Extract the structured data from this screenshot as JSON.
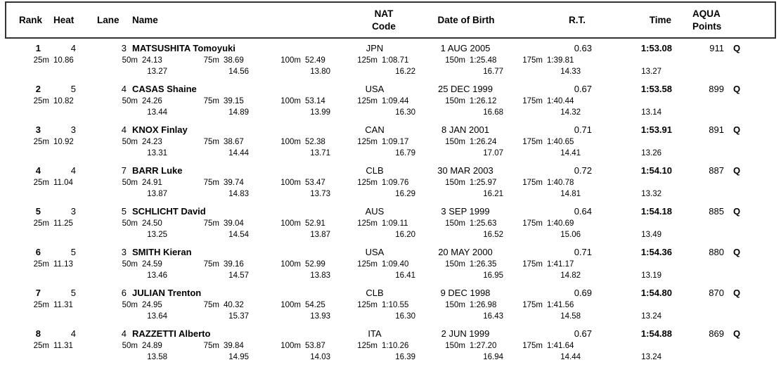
{
  "header": {
    "rank": "Rank",
    "heat": "Heat",
    "lane": "Lane",
    "name": "Name",
    "nat_line1": "NAT",
    "nat_line2": "Code",
    "dob": "Date of Birth",
    "rt": "R.T.",
    "time": "Time",
    "points_line1": "AQUA",
    "points_line2": "Points"
  },
  "split_labels": {
    "s25": "25m",
    "s50": "50m",
    "s75": "75m",
    "s100": "100m",
    "s125": "125m",
    "s150": "150m",
    "s175": "175m"
  },
  "rows": [
    {
      "rank": "1",
      "heat": "4",
      "lane": "3",
      "name": "MATSUSHITA Tomoyuki",
      "nat": "JPN",
      "dob": "1 AUG 2005",
      "rt": "0.63",
      "time": "1:53.08",
      "points": "911",
      "q": "Q",
      "splits": {
        "s25": "10.86",
        "s50": "24.13",
        "s75": "38.69",
        "s100": "52.49",
        "s125": "1:08.71",
        "s150": "1:25.48",
        "s175": "1:39.81"
      },
      "diffs": {
        "d50": "13.27",
        "d75": "14.56",
        "d100": "13.80",
        "d125": "16.22",
        "d150": "16.77",
        "d175": "14.33",
        "d200": "13.27"
      }
    },
    {
      "rank": "2",
      "heat": "5",
      "lane": "4",
      "name": "CASAS Shaine",
      "nat": "USA",
      "dob": "25 DEC 1999",
      "rt": "0.67",
      "time": "1:53.58",
      "points": "899",
      "q": "Q",
      "splits": {
        "s25": "10.82",
        "s50": "24.26",
        "s75": "39.15",
        "s100": "53.14",
        "s125": "1:09.44",
        "s150": "1:26.12",
        "s175": "1:40.44"
      },
      "diffs": {
        "d50": "13.44",
        "d75": "14.89",
        "d100": "13.99",
        "d125": "16.30",
        "d150": "16.68",
        "d175": "14.32",
        "d200": "13.14"
      }
    },
    {
      "rank": "3",
      "heat": "3",
      "lane": "4",
      "name": "KNOX Finlay",
      "nat": "CAN",
      "dob": "8 JAN 2001",
      "rt": "0.71",
      "time": "1:53.91",
      "points": "891",
      "q": "Q",
      "splits": {
        "s25": "10.92",
        "s50": "24.23",
        "s75": "38.67",
        "s100": "52.38",
        "s125": "1:09.17",
        "s150": "1:26.24",
        "s175": "1:40.65"
      },
      "diffs": {
        "d50": "13.31",
        "d75": "14.44",
        "d100": "13.71",
        "d125": "16.79",
        "d150": "17.07",
        "d175": "14.41",
        "d200": "13.26"
      }
    },
    {
      "rank": "4",
      "heat": "4",
      "lane": "7",
      "name": "BARR Luke",
      "nat": "CLB",
      "dob": "30 MAR 2003",
      "rt": "0.72",
      "time": "1:54.10",
      "points": "887",
      "q": "Q",
      "splits": {
        "s25": "11.04",
        "s50": "24.91",
        "s75": "39.74",
        "s100": "53.47",
        "s125": "1:09.76",
        "s150": "1:25.97",
        "s175": "1:40.78"
      },
      "diffs": {
        "d50": "13.87",
        "d75": "14.83",
        "d100": "13.73",
        "d125": "16.29",
        "d150": "16.21",
        "d175": "14.81",
        "d200": "13.32"
      }
    },
    {
      "rank": "5",
      "heat": "3",
      "lane": "5",
      "name": "SCHLICHT David",
      "nat": "AUS",
      "dob": "3 SEP 1999",
      "rt": "0.64",
      "time": "1:54.18",
      "points": "885",
      "q": "Q",
      "splits": {
        "s25": "11.25",
        "s50": "24.50",
        "s75": "39.04",
        "s100": "52.91",
        "s125": "1:09.11",
        "s150": "1:25.63",
        "s175": "1:40.69"
      },
      "diffs": {
        "d50": "13.25",
        "d75": "14.54",
        "d100": "13.87",
        "d125": "16.20",
        "d150": "16.52",
        "d175": "15.06",
        "d200": "13.49"
      }
    },
    {
      "rank": "6",
      "heat": "5",
      "lane": "3",
      "name": "SMITH Kieran",
      "nat": "USA",
      "dob": "20 MAY 2000",
      "rt": "0.71",
      "time": "1:54.36",
      "points": "880",
      "q": "Q",
      "splits": {
        "s25": "11.13",
        "s50": "24.59",
        "s75": "39.16",
        "s100": "52.99",
        "s125": "1:09.40",
        "s150": "1:26.35",
        "s175": "1:41.17"
      },
      "diffs": {
        "d50": "13.46",
        "d75": "14.57",
        "d100": "13.83",
        "d125": "16.41",
        "d150": "16.95",
        "d175": "14.82",
        "d200": "13.19"
      }
    },
    {
      "rank": "7",
      "heat": "5",
      "lane": "6",
      "name": "JULIAN Trenton",
      "nat": "CLB",
      "dob": "9 DEC 1998",
      "rt": "0.69",
      "time": "1:54.80",
      "points": "870",
      "q": "Q",
      "splits": {
        "s25": "11.31",
        "s50": "24.95",
        "s75": "40.32",
        "s100": "54.25",
        "s125": "1:10.55",
        "s150": "1:26.98",
        "s175": "1:41.56"
      },
      "diffs": {
        "d50": "13.64",
        "d75": "15.37",
        "d100": "13.93",
        "d125": "16.30",
        "d150": "16.43",
        "d175": "14.58",
        "d200": "13.24"
      }
    },
    {
      "rank": "8",
      "heat": "4",
      "lane": "4",
      "name": "RAZZETTI Alberto",
      "nat": "ITA",
      "dob": "2 JUN 1999",
      "rt": "0.67",
      "time": "1:54.88",
      "points": "869",
      "q": "Q",
      "splits": {
        "s25": "11.31",
        "s50": "24.89",
        "s75": "39.84",
        "s100": "53.87",
        "s125": "1:10.26",
        "s150": "1:27.20",
        "s175": "1:41.64"
      },
      "diffs": {
        "d50": "13.58",
        "d75": "14.95",
        "d100": "14.03",
        "d125": "16.39",
        "d150": "16.94",
        "d175": "14.44",
        "d200": "13.24"
      }
    }
  ]
}
